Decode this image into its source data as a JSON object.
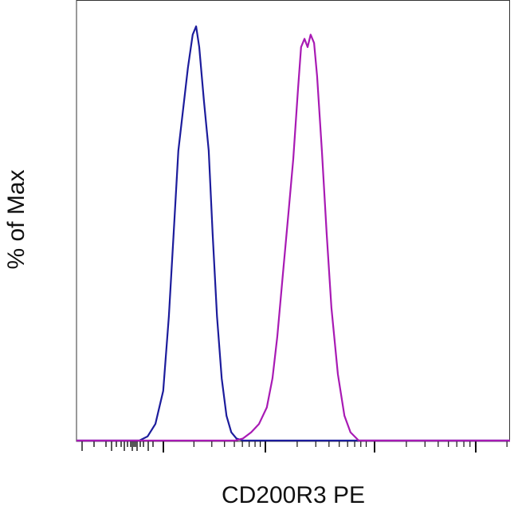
{
  "chart_data": {
    "type": "line",
    "y_label": "% of Max",
    "x_label": "CD200R3 PE",
    "xlim": [
      0,
      100
    ],
    "ylim": [
      0,
      100
    ],
    "series": [
      {
        "color": "#1c1c9c",
        "x": [
          0,
          14.5,
          16.4,
          18.2,
          20.0,
          21.3,
          22.4,
          23.5,
          24.6,
          25.7,
          26.8,
          27.6,
          28.3,
          29.4,
          30.5,
          31.4,
          32.4,
          33.5,
          34.6,
          35.7,
          36.9,
          38.4,
          100
        ],
        "values": [
          0,
          0,
          1,
          4,
          12,
          30,
          50,
          70,
          80,
          90,
          98,
          100,
          95,
          82,
          70,
          50,
          30,
          15,
          6,
          2,
          0.5,
          0,
          0
        ]
      },
      {
        "color": "#a81ab4",
        "x": [
          0,
          36.6,
          38.4,
          40.3,
          42.1,
          43.9,
          45.2,
          46.3,
          47.6,
          48.9,
          50.0,
          51.1,
          51.8,
          52.6,
          53.3,
          54.0,
          54.8,
          55.5,
          56.6,
          57.7,
          58.8,
          60.3,
          61.8,
          63.2,
          65.1,
          100
        ],
        "values": [
          0,
          0,
          0.5,
          2,
          4,
          8,
          15,
          25,
          40,
          55,
          68,
          85,
          95,
          97,
          95,
          98,
          96,
          88,
          70,
          50,
          32,
          16,
          6,
          2,
          0,
          0
        ]
      }
    ]
  }
}
